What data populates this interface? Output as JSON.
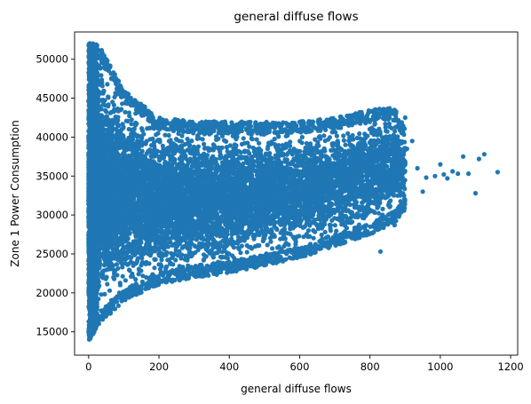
{
  "chart_data": {
    "type": "scatter",
    "title": "general diffuse flows",
    "xlabel": "general diffuse flows",
    "ylabel": "Zone 1 Power Consumption",
    "xlim": [
      -40,
      1220
    ],
    "ylim": [
      12000,
      53500
    ],
    "xticks": [
      0,
      200,
      400,
      600,
      800,
      1000,
      1200
    ],
    "yticks": [
      15000,
      20000,
      25000,
      30000,
      35000,
      40000,
      45000,
      50000
    ],
    "xtick_labels": [
      "0",
      "200",
      "400",
      "600",
      "800",
      "1000",
      "1200"
    ],
    "ytick_labels": [
      "15000",
      "20000",
      "25000",
      "30000",
      "35000",
      "40000",
      "45000",
      "50000"
    ],
    "grid": false,
    "marker_color": "#1f77b4",
    "series": [
      {
        "envelope": [
          {
            "x": 0,
            "ymin": 13800,
            "ymax": 52200
          },
          {
            "x": 30,
            "ymin": 16000,
            "ymax": 51800
          },
          {
            "x": 100,
            "ymin": 19000,
            "ymax": 46000
          },
          {
            "x": 200,
            "ymin": 21000,
            "ymax": 42500
          },
          {
            "x": 300,
            "ymin": 22000,
            "ymax": 42000
          },
          {
            "x": 400,
            "ymin": 22500,
            "ymax": 42000
          },
          {
            "x": 500,
            "ymin": 23500,
            "ymax": 42000
          },
          {
            "x": 600,
            "ymin": 24500,
            "ymax": 42000
          },
          {
            "x": 700,
            "ymin": 26000,
            "ymax": 42500
          },
          {
            "x": 800,
            "ymin": 27500,
            "ymax": 43500
          },
          {
            "x": 870,
            "ymin": 29000,
            "ymax": 43800
          },
          {
            "x": 900,
            "ymin": 30500,
            "ymax": 41000
          }
        ],
        "outliers": [
          {
            "x": 920,
            "y": 39500
          },
          {
            "x": 935,
            "y": 36000
          },
          {
            "x": 950,
            "y": 33000
          },
          {
            "x": 960,
            "y": 34800
          },
          {
            "x": 985,
            "y": 35000
          },
          {
            "x": 1000,
            "y": 36500
          },
          {
            "x": 1010,
            "y": 35200
          },
          {
            "x": 1020,
            "y": 34700
          },
          {
            "x": 1035,
            "y": 35600
          },
          {
            "x": 1050,
            "y": 35300
          },
          {
            "x": 1065,
            "y": 37500
          },
          {
            "x": 1080,
            "y": 35300
          },
          {
            "x": 1100,
            "y": 32800
          },
          {
            "x": 1110,
            "y": 37200
          },
          {
            "x": 1125,
            "y": 37800
          },
          {
            "x": 1163,
            "y": 35500
          },
          {
            "x": 830,
            "y": 25300
          },
          {
            "x": 870,
            "y": 28700
          },
          {
            "x": 905,
            "y": 38500
          },
          {
            "x": 900,
            "y": 42500
          }
        ]
      }
    ]
  }
}
